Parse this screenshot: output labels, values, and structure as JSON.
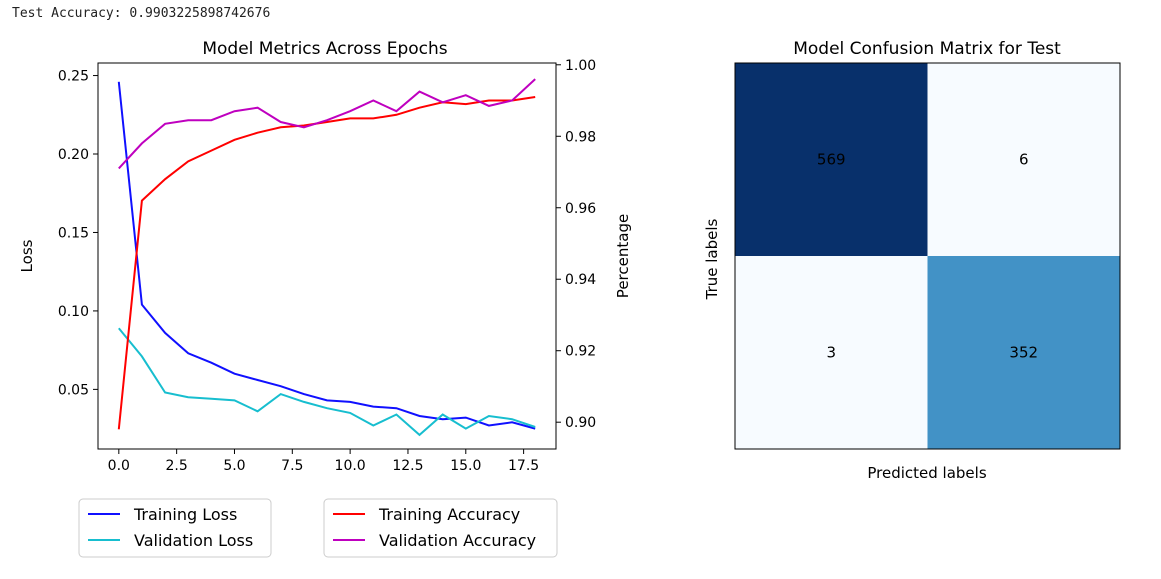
{
  "output_line": "Test Accuracy: 0.9903225898742676",
  "chart_data": [
    {
      "type": "line",
      "title": "Model Metrics Across Epochs",
      "xlabel": "",
      "ylabel": "Loss",
      "y2label": "Percentage",
      "xlim": [
        -0.9,
        18.9
      ],
      "ylim": [
        0.012,
        0.258
      ],
      "y2lim": [
        0.8925,
        1.0005
      ],
      "xticks": [
        0.0,
        2.5,
        5.0,
        7.5,
        10.0,
        12.5,
        15.0,
        17.5
      ],
      "xtick_labels": [
        "0.0",
        "2.5",
        "5.0",
        "7.5",
        "10.0",
        "12.5",
        "15.0",
        "17.5"
      ],
      "yticks": [
        0.05,
        0.1,
        0.15,
        0.2,
        0.25
      ],
      "ytick_labels": [
        "0.05",
        "0.10",
        "0.15",
        "0.20",
        "0.25"
      ],
      "y2ticks": [
        0.9,
        0.92,
        0.94,
        0.96,
        0.98,
        1.0
      ],
      "y2tick_labels": [
        "0.90",
        "0.92",
        "0.94",
        "0.96",
        "0.98",
        "1.00"
      ],
      "grid": false,
      "legend_placement": "below",
      "x": [
        0,
        1,
        2,
        3,
        4,
        5,
        6,
        7,
        8,
        9,
        10,
        11,
        12,
        13,
        14,
        15,
        16,
        17,
        18
      ],
      "series": [
        {
          "name": "Training Loss",
          "axis": "left",
          "color": "#1010ff",
          "values": [
            0.246,
            0.104,
            0.086,
            0.073,
            0.067,
            0.06,
            0.056,
            0.052,
            0.047,
            0.043,
            0.042,
            0.039,
            0.038,
            0.033,
            0.031,
            0.032,
            0.027,
            0.029,
            0.025
          ]
        },
        {
          "name": "Validation Loss",
          "axis": "left",
          "color": "#17becf",
          "values": [
            0.089,
            0.071,
            0.048,
            0.045,
            0.044,
            0.043,
            0.036,
            0.047,
            0.042,
            0.038,
            0.035,
            0.027,
            0.034,
            0.021,
            0.034,
            0.025,
            0.033,
            0.031,
            0.026
          ]
        },
        {
          "name": "Training Accuracy",
          "axis": "right",
          "color": "#ff0000",
          "values": [
            0.898,
            0.962,
            0.968,
            0.973,
            0.976,
            0.979,
            0.981,
            0.9825,
            0.983,
            0.984,
            0.985,
            0.985,
            0.986,
            0.988,
            0.9895,
            0.989,
            0.99,
            0.99,
            0.991
          ]
        },
        {
          "name": "Validation Accuracy",
          "axis": "right",
          "color": "#bf00bf",
          "values": [
            0.971,
            0.978,
            0.9835,
            0.9845,
            0.9845,
            0.987,
            0.988,
            0.984,
            0.9825,
            0.9845,
            0.987,
            0.99,
            0.987,
            0.9925,
            0.9895,
            0.9915,
            0.9885,
            0.99,
            0.996
          ]
        }
      ]
    },
    {
      "type": "heatmap",
      "title": "Model Confusion Matrix for Test",
      "xlabel": "Predicted labels",
      "ylabel": "True labels",
      "colormap": "Blues",
      "values": [
        [
          569,
          6
        ],
        [
          3,
          352
        ]
      ],
      "cell_colors": [
        [
          "#08306b",
          "#f7fbff"
        ],
        [
          "#f7fbff",
          "#4292c6"
        ]
      ],
      "text_color": "#000000"
    }
  ]
}
